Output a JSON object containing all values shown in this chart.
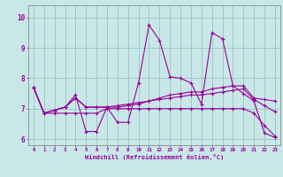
{
  "xlabel": "Windchill (Refroidissement éolien,°C)",
  "x_values": [
    0,
    1,
    2,
    3,
    4,
    5,
    6,
    7,
    8,
    9,
    10,
    11,
    12,
    13,
    14,
    15,
    16,
    17,
    18,
    19,
    20,
    21,
    22,
    23
  ],
  "main_line": [
    7.7,
    6.85,
    6.95,
    7.05,
    7.45,
    6.25,
    6.25,
    7.05,
    6.55,
    6.55,
    7.85,
    9.75,
    9.25,
    8.05,
    8.0,
    7.85,
    7.15,
    9.5,
    9.3,
    7.75,
    7.5,
    7.25,
    6.2,
    6.05
  ],
  "line2": [
    7.7,
    6.85,
    6.95,
    7.05,
    7.35,
    7.05,
    7.05,
    7.05,
    7.05,
    7.1,
    7.15,
    7.25,
    7.35,
    7.45,
    7.5,
    7.55,
    7.55,
    7.65,
    7.7,
    7.75,
    7.75,
    7.35,
    7.3,
    7.25
  ],
  "line3": [
    7.7,
    6.85,
    6.95,
    7.05,
    7.35,
    7.05,
    7.05,
    7.05,
    7.1,
    7.15,
    7.2,
    7.25,
    7.3,
    7.35,
    7.4,
    7.45,
    7.45,
    7.5,
    7.55,
    7.6,
    7.65,
    7.3,
    7.1,
    6.9
  ],
  "line4": [
    7.7,
    6.85,
    6.85,
    6.85,
    6.85,
    6.85,
    6.85,
    7.0,
    7.0,
    7.0,
    7.0,
    7.0,
    7.0,
    7.0,
    7.0,
    7.0,
    7.0,
    7.0,
    7.0,
    7.0,
    7.0,
    6.85,
    6.45,
    6.1
  ],
  "line_color": "#990099",
  "bg_color": "#c8e8e8",
  "grid_color": "#a0c8c8",
  "ylim": [
    5.8,
    10.4
  ],
  "xlim": [
    -0.5,
    23.5
  ],
  "yticks": [
    6,
    7,
    8,
    9,
    10
  ],
  "xticks": [
    0,
    1,
    2,
    3,
    4,
    5,
    6,
    7,
    8,
    9,
    10,
    11,
    12,
    13,
    14,
    15,
    16,
    17,
    18,
    19,
    20,
    21,
    22,
    23
  ]
}
